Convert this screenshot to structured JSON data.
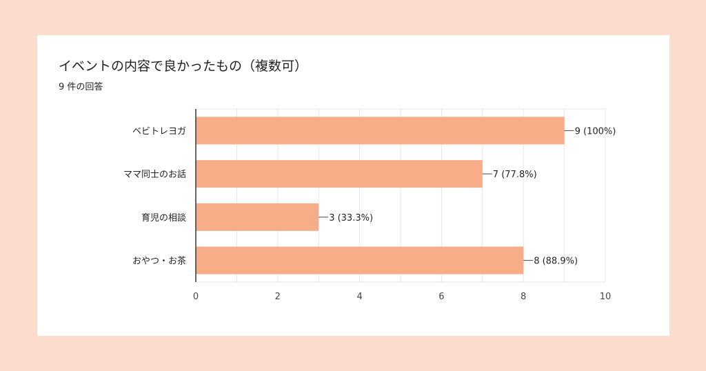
{
  "header": {
    "title": "イベントの内容で良かったもの（複数可）",
    "subtitle": "9 件の回答"
  },
  "colors": {
    "bar": "#f8ad89",
    "background": "#fbdccd",
    "card": "#ffffff",
    "grid": "#e6e6e6",
    "axis": "#333333"
  },
  "chart_data": {
    "type": "bar",
    "orientation": "horizontal",
    "title": "イベントの内容で良かったもの（複数可）",
    "subtitle": "9 件の回答",
    "categories": [
      "ベビトレヨガ",
      "ママ同士のお話",
      "育児の相談",
      "おやつ・お茶"
    ],
    "values": [
      9,
      7,
      3,
      8
    ],
    "data_labels": [
      "9 (100%)",
      "7 (77.8%)",
      "3 (33.3%)",
      "8 (88.9%)"
    ],
    "xlim": [
      0,
      10
    ],
    "xticks": [
      0,
      2,
      4,
      6,
      8,
      10
    ],
    "grid": true,
    "legend": "none"
  }
}
